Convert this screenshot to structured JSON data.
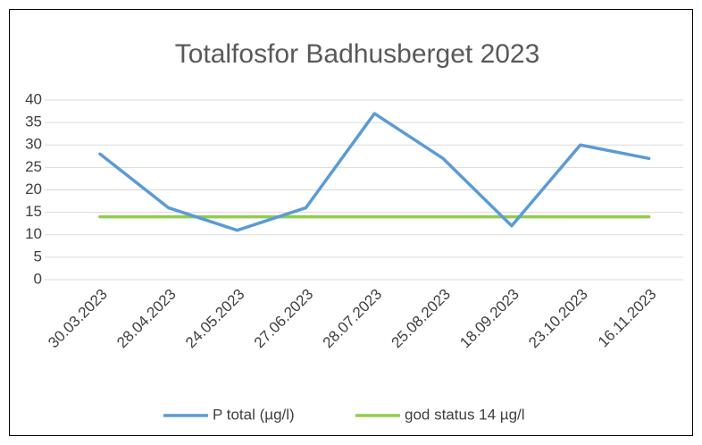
{
  "chart_data": {
    "type": "line",
    "title": "Totalfosfor Badhusberget 2023",
    "categories": [
      "30.03.2023",
      "28.04.2023",
      "24.05.2023",
      "27.06.2023",
      "28.07.2023",
      "25.08.2023",
      "18.09.2023",
      "23.10.2023",
      "16.11.2023"
    ],
    "series": [
      {
        "name": "P total (µg/l)",
        "color": "#5b9bd5",
        "values": [
          28,
          16,
          11,
          16,
          37,
          27,
          12,
          30,
          27
        ]
      },
      {
        "name": "god status 14 µg/l",
        "color": "#8fce4a",
        "values": [
          14,
          14,
          14,
          14,
          14,
          14,
          14,
          14,
          14
        ]
      }
    ],
    "ylim": [
      0,
      40
    ],
    "yticks": [
      0,
      5,
      10,
      15,
      20,
      25,
      30,
      35,
      40
    ],
    "grid": true,
    "legend": "bottom"
  }
}
